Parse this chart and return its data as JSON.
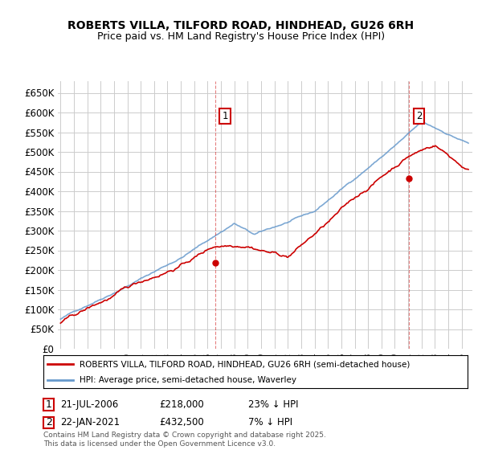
{
  "title": "ROBERTS VILLA, TILFORD ROAD, HINDHEAD, GU26 6RH",
  "subtitle": "Price paid vs. HM Land Registry's House Price Index (HPI)",
  "ylim": [
    0,
    680000
  ],
  "yticks": [
    0,
    50000,
    100000,
    150000,
    200000,
    250000,
    300000,
    350000,
    400000,
    450000,
    500000,
    550000,
    600000,
    650000
  ],
  "ytick_labels": [
    "£0",
    "£50K",
    "£100K",
    "£150K",
    "£200K",
    "£250K",
    "£300K",
    "£350K",
    "£400K",
    "£450K",
    "£500K",
    "£550K",
    "£600K",
    "£650K"
  ],
  "legend_line1": "ROBERTS VILLA, TILFORD ROAD, HINDHEAD, GU26 6RH (semi-detached house)",
  "legend_line2": "HPI: Average price, semi-detached house, Waverley",
  "red_color": "#cc0000",
  "blue_color": "#6699cc",
  "annotation1_date": "21-JUL-2006",
  "annotation1_price": "£218,000",
  "annotation1_hpi": "23% ↓ HPI",
  "annotation2_date": "22-JAN-2021",
  "annotation2_price": "£432,500",
  "annotation2_hpi": "7% ↓ HPI",
  "copyright_text": "Contains HM Land Registry data © Crown copyright and database right 2025.\nThis data is licensed under the Open Government Licence v3.0.",
  "x_start_year": 1995,
  "x_end_year": 2025,
  "background_color": "#ffffff",
  "grid_color": "#cccccc",
  "sale1_year": 2006.55,
  "sale1_price": 218000,
  "sale2_year": 2021.06,
  "sale2_price": 432500
}
